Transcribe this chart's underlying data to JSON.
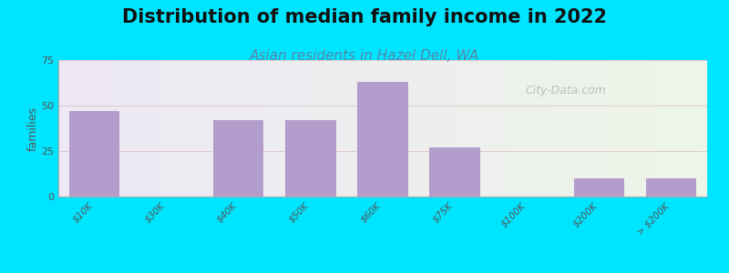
{
  "title": "Distribution of median family income in 2022",
  "subtitle": "Asian residents in Hazel Dell, WA",
  "xlabel": "",
  "ylabel": "families",
  "categories": [
    "$10K",
    "$30K",
    "$40K",
    "$50K",
    "$60K",
    "$75K",
    "$100K",
    "$200K",
    "> $200K"
  ],
  "values": [
    47,
    0,
    42,
    42,
    63,
    27,
    0,
    10,
    10
  ],
  "bar_color": "#b39dcc",
  "background_outer": "#00e5ff",
  "background_inner_top": "#f0f5e8",
  "background_inner_bottom": "#e8e0f0",
  "ylim": [
    0,
    75
  ],
  "yticks": [
    0,
    25,
    50,
    75
  ],
  "watermark": "City-Data.com",
  "title_fontsize": 15,
  "subtitle_fontsize": 11,
  "ylabel_fontsize": 9
}
